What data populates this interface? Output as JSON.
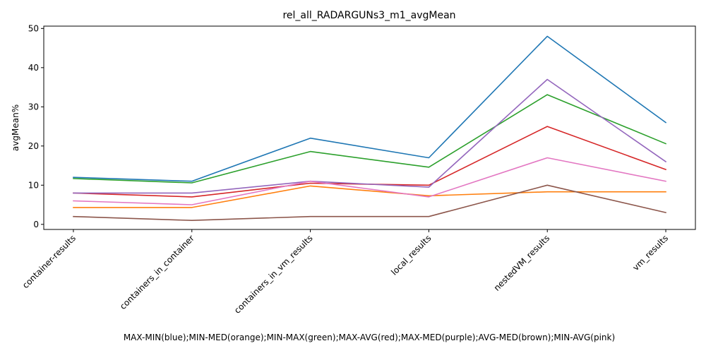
{
  "chart_data": {
    "type": "line",
    "title": "rel_all_RADARGUNs3_m1_avgMean",
    "ylabel": "avgMean%",
    "xlabel": "MAX-MIN(blue);MIN-MED(orange);MIN-MAX(green);MAX-AVG(red);MAX-MED(purple);AVG-MED(brown);MIN-AVG(pink)",
    "categories": [
      "container-results",
      "containers_in_container",
      "containers_in_vm_results",
      "local_results",
      "nestedVM_results",
      "vm_results"
    ],
    "ylim": [
      -1.3,
      50.6
    ],
    "yticks": [
      0,
      10,
      20,
      30,
      40,
      50
    ],
    "grid": false,
    "series": [
      {
        "color": "#1f77b4",
        "values": [
          12,
          11,
          22,
          17,
          48,
          26
        ]
      },
      {
        "color": "#ff7f0e",
        "values": [
          4.3,
          4.3,
          9.8,
          7.3,
          8.3,
          8.3
        ]
      },
      {
        "color": "#2ca02c",
        "values": [
          11.7,
          10.6,
          18.6,
          14.6,
          33.1,
          20.6
        ]
      },
      {
        "color": "#d62728",
        "values": [
          8,
          7,
          10.5,
          10,
          25,
          14
        ]
      },
      {
        "color": "#9467bd",
        "values": [
          8,
          8,
          11,
          9.5,
          37,
          16
        ]
      },
      {
        "color": "#8c564b",
        "values": [
          2,
          1,
          2,
          2,
          10,
          3
        ]
      },
      {
        "color": "#e377c2",
        "values": [
          6,
          5,
          11,
          7,
          17,
          11
        ]
      }
    ]
  }
}
